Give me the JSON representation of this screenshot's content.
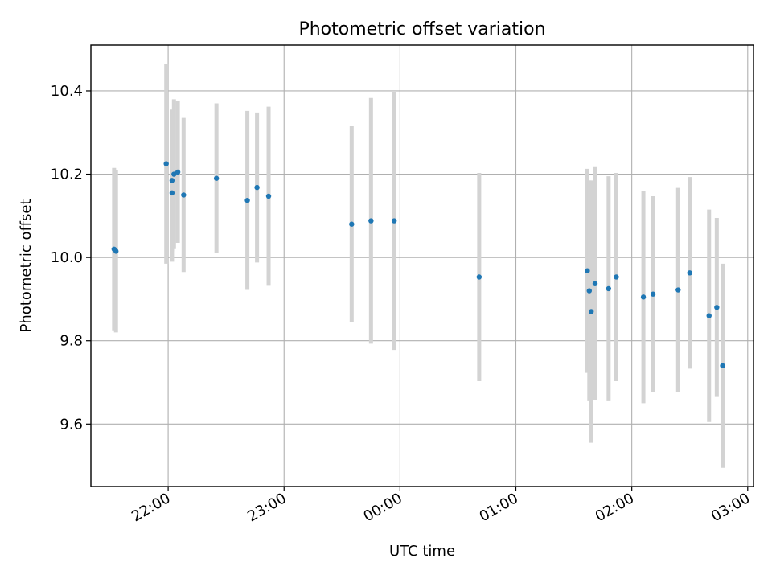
{
  "chart_data": {
    "type": "scatter",
    "title": "Photometric offset variation",
    "xlabel": "UTC time",
    "ylabel": "Photometric offset",
    "x_axis_type": "time",
    "xlim": [
      "21:20",
      "03:03"
    ],
    "ylim": [
      9.45,
      10.51
    ],
    "x_ticks": [
      "22:00",
      "23:00",
      "00:00",
      "01:00",
      "02:00",
      "03:00"
    ],
    "y_ticks": [
      9.6,
      9.8,
      10.0,
      10.2,
      10.4
    ],
    "y_tick_labels": [
      "9.6",
      "9.8",
      "10.0",
      "10.2",
      "10.4"
    ],
    "grid": true,
    "legend": "none",
    "colors": {
      "point": "#1f77b4",
      "errorbar": "#d3d3d3",
      "grid": "#b0b0b0"
    },
    "series": [
      {
        "points": [
          {
            "x": "21:32",
            "y": 10.02,
            "err": 0.195
          },
          {
            "x": "21:33",
            "y": 10.015,
            "err": 0.195
          },
          {
            "x": "21:59",
            "y": 10.225,
            "err": 0.24
          },
          {
            "x": "22:02",
            "y": 10.155,
            "err": 0.165
          },
          {
            "x": "22:02",
            "y": 10.185,
            "err": 0.17
          },
          {
            "x": "22:03",
            "y": 10.2,
            "err": 0.18
          },
          {
            "x": "22:05",
            "y": 10.205,
            "err": 0.17
          },
          {
            "x": "22:08",
            "y": 10.15,
            "err": 0.185
          },
          {
            "x": "22:25",
            "y": 10.19,
            "err": 0.18
          },
          {
            "x": "22:41",
            "y": 10.137,
            "err": 0.215
          },
          {
            "x": "22:46",
            "y": 10.168,
            "err": 0.18
          },
          {
            "x": "22:52",
            "y": 10.147,
            "err": 0.215
          },
          {
            "x": "23:35",
            "y": 10.08,
            "err": 0.235
          },
          {
            "x": "23:45",
            "y": 10.088,
            "err": 0.295
          },
          {
            "x": "23:57",
            "y": 10.088,
            "err": 0.31
          },
          {
            "x": "00:41",
            "y": 9.953,
            "err": 0.25
          },
          {
            "x": "01:37",
            "y": 9.968,
            "err": 0.245
          },
          {
            "x": "01:38",
            "y": 9.92,
            "err": 0.265
          },
          {
            "x": "01:39",
            "y": 9.87,
            "err": 0.315
          },
          {
            "x": "01:41",
            "y": 9.937,
            "err": 0.28
          },
          {
            "x": "01:48",
            "y": 9.925,
            "err": 0.27
          },
          {
            "x": "01:52",
            "y": 9.953,
            "err": 0.25
          },
          {
            "x": "02:06",
            "y": 9.905,
            "err": 0.255
          },
          {
            "x": "02:11",
            "y": 9.912,
            "err": 0.235
          },
          {
            "x": "02:24",
            "y": 9.922,
            "err": 0.245
          },
          {
            "x": "02:30",
            "y": 9.963,
            "err": 0.23
          },
          {
            "x": "02:40",
            "y": 9.86,
            "err": 0.255
          },
          {
            "x": "02:44",
            "y": 9.88,
            "err": 0.215
          },
          {
            "x": "02:47",
            "y": 9.74,
            "err": 0.245
          }
        ]
      }
    ]
  }
}
